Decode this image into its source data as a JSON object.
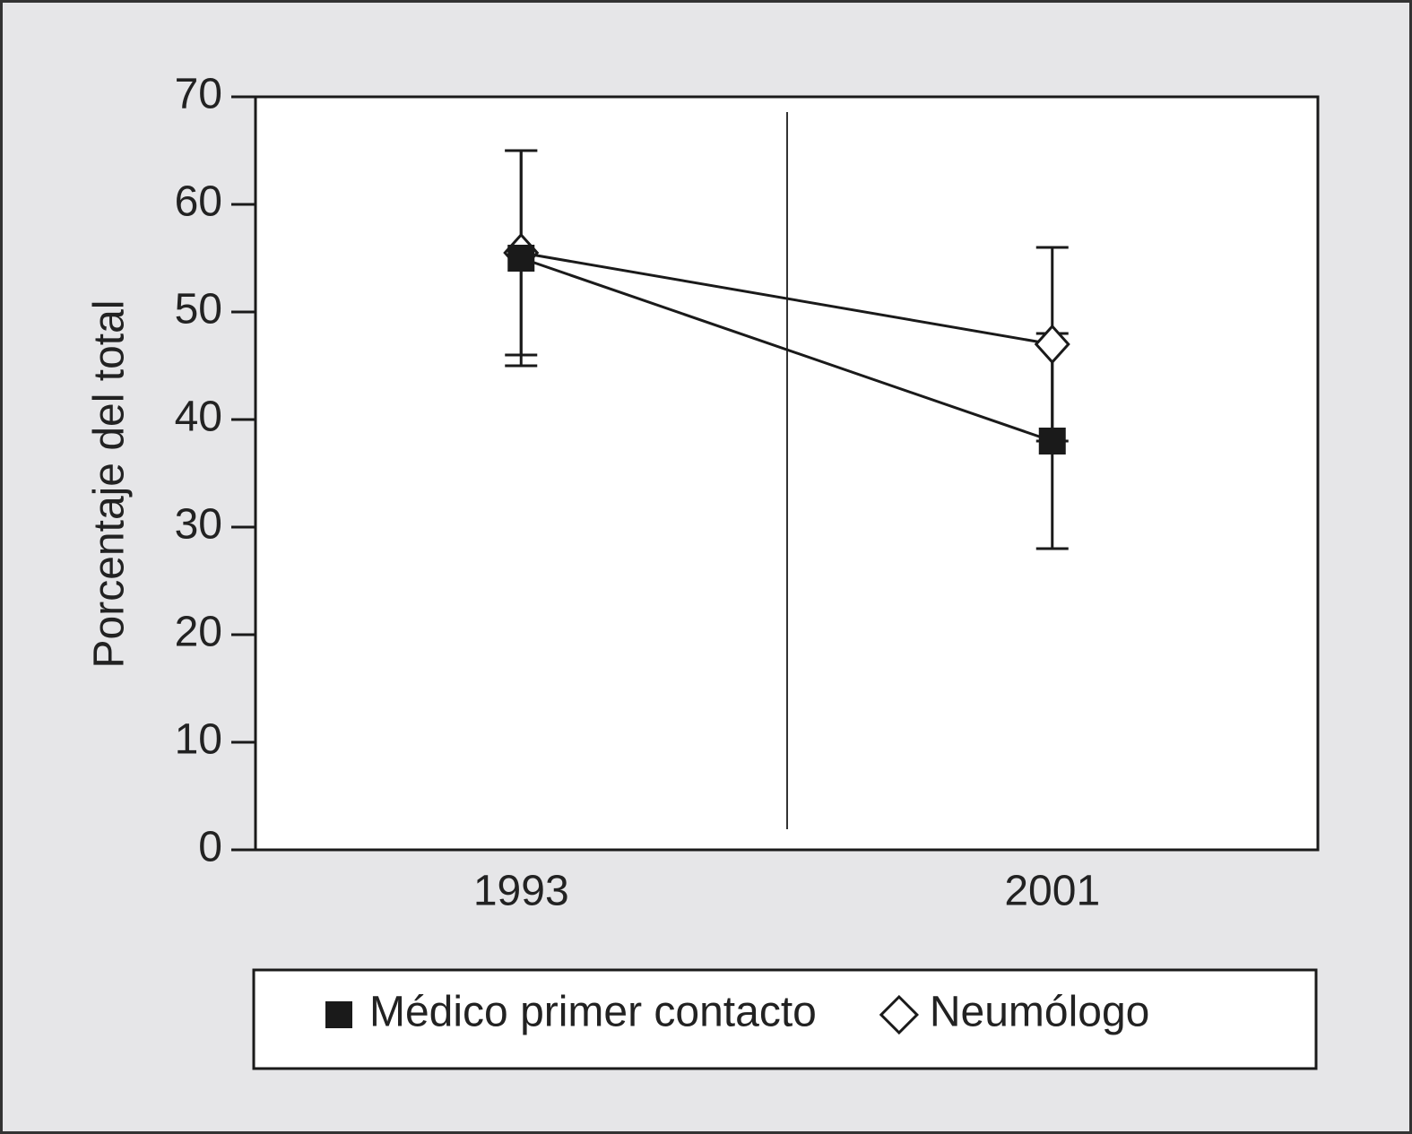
{
  "chart_data": {
    "type": "line",
    "y_label": "Porcentaje del total",
    "categories": [
      "1993",
      "2001"
    ],
    "series": [
      {
        "name": "Médico primer contacto",
        "color": "#1a1a1a",
        "marker": "square",
        "values": [
          55,
          38
        ],
        "errors": [
          10,
          10
        ]
      },
      {
        "name": "Neumólogo",
        "color": "#1a1a1a",
        "marker": "diamond",
        "values": [
          55.5,
          47
        ],
        "errors": [
          9.5,
          9
        ]
      }
    ],
    "ylim": [
      0,
      70
    ],
    "yticks": [
      0,
      10,
      20,
      30,
      40,
      50,
      60,
      70
    ],
    "grid": false,
    "legend": "bottom"
  }
}
